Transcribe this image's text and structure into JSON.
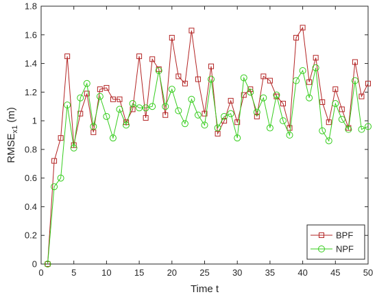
{
  "chart_data": {
    "type": "line",
    "xlabel": "Time t",
    "ylabel_main": "RMSE",
    "ylabel_sub": "x1",
    "ylabel_unit": "(m)",
    "xlim": [
      0,
      50
    ],
    "ylim": [
      0,
      1.8
    ],
    "xticks": [
      0,
      5,
      10,
      15,
      20,
      25,
      30,
      35,
      40,
      45,
      50
    ],
    "yticks": [
      0,
      0.2,
      0.4,
      0.6,
      0.8,
      1,
      1.2,
      1.4,
      1.6,
      1.8
    ],
    "grid": false,
    "legend_position": "bottom-right",
    "x": [
      1,
      2,
      3,
      4,
      5,
      6,
      7,
      8,
      9,
      10,
      11,
      12,
      13,
      14,
      15,
      16,
      17,
      18,
      19,
      20,
      21,
      22,
      23,
      24,
      25,
      26,
      27,
      28,
      29,
      30,
      31,
      32,
      33,
      34,
      35,
      36,
      37,
      38,
      39,
      40,
      41,
      42,
      43,
      44,
      45,
      46,
      47,
      48,
      49,
      50
    ],
    "series": [
      {
        "name": "BPF",
        "color": "#b22222",
        "marker": "square",
        "values": [
          0,
          0.72,
          0.88,
          1.45,
          0.83,
          1.05,
          1.19,
          0.92,
          1.22,
          1.23,
          1.15,
          1.15,
          0.99,
          1.08,
          1.45,
          1.02,
          1.43,
          1.36,
          1.04,
          1.58,
          1.31,
          1.26,
          1.63,
          1.29,
          1.05,
          1.38,
          0.91,
          1.0,
          1.14,
          0.99,
          1.18,
          1.22,
          1.03,
          1.31,
          1.28,
          1.17,
          1.12,
          0.95,
          1.58,
          1.65,
          1.27,
          1.44,
          1.13,
          0.99,
          1.22,
          1.08,
          0.95,
          1.41,
          1.17,
          1.26
        ]
      },
      {
        "name": "NPF",
        "color": "#33cc1a",
        "marker": "circle",
        "values": [
          0,
          0.54,
          0.6,
          1.11,
          0.81,
          1.16,
          1.26,
          0.96,
          1.17,
          1.03,
          0.88,
          1.08,
          0.97,
          1.12,
          1.09,
          1.09,
          1.1,
          1.35,
          1.1,
          1.22,
          1.07,
          0.98,
          1.15,
          1.04,
          0.97,
          1.29,
          0.95,
          1.03,
          1.05,
          0.88,
          1.3,
          1.2,
          1.06,
          1.16,
          0.95,
          1.18,
          1.0,
          0.9,
          1.28,
          1.35,
          1.16,
          1.37,
          0.93,
          0.86,
          1.12,
          1.01,
          0.94,
          1.28,
          0.94,
          0.96
        ]
      }
    ]
  }
}
